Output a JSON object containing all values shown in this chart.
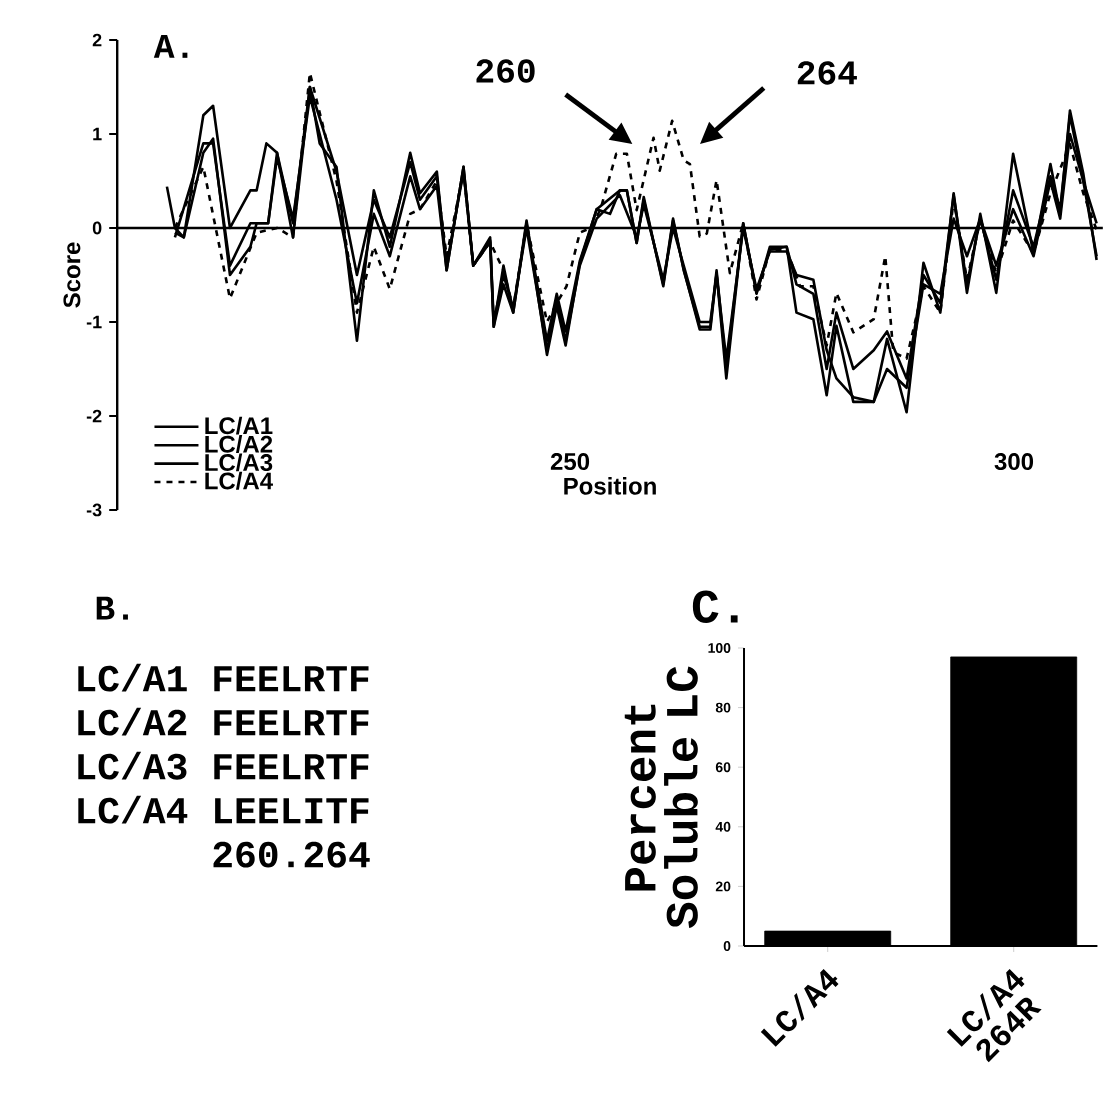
{
  "chart_data": [
    {
      "type": "line",
      "title": "A.",
      "xlabel": "Position",
      "ylabel": "Score",
      "xlim": [
        199,
        310
      ],
      "ylim": [
        -3,
        2
      ],
      "xticks": [
        250,
        300
      ],
      "yticks": [
        -3,
        -2,
        -1,
        0,
        1,
        2
      ],
      "legend": "bottom left",
      "ref_lines": [
        {
          "axis": "y",
          "value": 0
        }
      ],
      "annotations": [
        "260",
        "264"
      ],
      "series": [
        {
          "name": "LC/A1",
          "color": "#000000",
          "line_style": "solid",
          "x": [
            204.6,
            205.5,
            206.5,
            208.7,
            209.8,
            211.7,
            214,
            214.7,
            215.8,
            217,
            218.8,
            220.7,
            221.8,
            223.7,
            226,
            227.9,
            229.7,
            232,
            233.1,
            235,
            236.1,
            238,
            239.1,
            241,
            241.4,
            242.5,
            243.6,
            245.1,
            247.4,
            248.5,
            249.5,
            251.1,
            253,
            254.5,
            255.6,
            256.4,
            257.5,
            258.3,
            260.5,
            261.6,
            262.8,
            264.6,
            265.8,
            266.5,
            267.6,
            269.5,
            271,
            272.5,
            274.4,
            275.5,
            277.4,
            278.9,
            280,
            281.9,
            284.2,
            285.7,
            287.9,
            289.8,
            291.7,
            293.2,
            294.7,
            296.2,
            298,
            299.9,
            302.2,
            304.1,
            305.2,
            306.3,
            307.8,
            309.3
          ],
          "values": [
            0.44,
            0,
            -0.1,
            1.2,
            1.3,
            0,
            0.4,
            0.4,
            0.9,
            0.8,
            -0.1,
            1.5,
            0.9,
            0.65,
            -1.2,
            0.4,
            -0.2,
            0.8,
            0.37,
            0.6,
            -0.45,
            0.65,
            -0.4,
            -0.13,
            -1.05,
            -0.4,
            -0.9,
            0.08,
            -1.35,
            -0.83,
            -1.25,
            -0.37,
            0.2,
            0.15,
            0.4,
            0.4,
            -0.16,
            0.33,
            -0.62,
            0.08,
            -0.44,
            -1.08,
            -1.08,
            -0.48,
            -1.6,
            0.05,
            -0.69,
            -0.23,
            -0.2,
            -0.9,
            -0.97,
            -1.78,
            -1.04,
            -1.85,
            -1.85,
            -1.18,
            -1.96,
            -0.37,
            -0.9,
            0.37,
            -0.69,
            0.15,
            -0.69,
            0.79,
            -0.27,
            0.68,
            0.15,
            1.25,
            0.58,
            -0.34
          ]
        },
        {
          "name": "LC/A2",
          "color": "#000000",
          "line_style": "solid",
          "x": [
            205.5,
            206.5,
            208.7,
            209.8,
            211.7,
            214,
            214.7,
            216,
            217,
            218.8,
            220.7,
            221.8,
            223.7,
            226,
            227.9,
            229.7,
            232,
            233.1,
            235,
            236.1,
            238,
            239.1,
            241,
            241.4,
            242.5,
            243.6,
            245.1,
            247.4,
            248.5,
            249.5,
            251.1,
            253,
            255.6,
            256.4,
            257.5,
            258.3,
            260.5,
            261.6,
            262.8,
            264.6,
            265.8,
            266.5,
            267.6,
            269.5,
            271,
            272.5,
            274.4,
            275.5,
            277.4,
            278.9,
            280,
            281.9,
            284.2,
            285.7,
            287.9,
            289.8,
            291.7,
            293.2,
            294.7,
            296.2,
            298,
            299.9,
            302.2,
            304.1,
            305.2,
            306.3,
            307.8,
            309.3
          ],
          "values": [
            -0.05,
            -0.1,
            0.8,
            0.95,
            -0.5,
            -0.2,
            0.05,
            0.05,
            0.75,
            0.1,
            1.4,
            1.0,
            0.3,
            -0.8,
            0.15,
            -0.3,
            0.55,
            0.2,
            0.45,
            -0.45,
            0.65,
            -0.4,
            -0.15,
            -1.05,
            -0.6,
            -0.9,
            0.05,
            -1.2,
            -0.7,
            -1.1,
            -0.35,
            0.2,
            0.4,
            0.4,
            -0.16,
            0.3,
            -0.6,
            0.1,
            -0.45,
            -1.05,
            -1.05,
            -0.45,
            -1.5,
            0.05,
            -0.7,
            -0.2,
            -0.2,
            -0.6,
            -0.7,
            -1.5,
            -0.9,
            -1.5,
            -1.3,
            -1.1,
            -1.6,
            -0.5,
            -0.8,
            0.35,
            -0.6,
            0.1,
            -0.55,
            0.4,
            -0.2,
            0.55,
            0.2,
            1.2,
            0.5,
            0.05
          ]
        },
        {
          "name": "LC/A3",
          "color": "#000000",
          "line_style": "solid",
          "x": [
            205.5,
            208.7,
            209.8,
            211.7,
            214,
            216,
            217,
            218.8,
            220.7,
            223.7,
            226,
            227.9,
            229.7,
            232,
            233.1,
            235,
            236.1,
            238,
            239.1,
            241,
            241.4,
            242.5,
            243.6,
            245.1,
            247.4,
            248.5,
            249.5,
            251.1,
            253,
            255.6,
            257.5,
            258.3,
            260.5,
            261.6,
            262.8,
            264.6,
            265.8,
            266.5,
            267.6,
            269.5,
            271,
            272.5,
            274.4,
            275.5,
            277.4,
            278.9,
            280,
            281.9,
            284.2,
            285.7,
            287.9,
            289.8,
            291.7,
            293.2,
            294.7,
            296.2,
            298,
            299.9,
            302.2,
            304.1,
            305.2,
            306.3,
            307.8,
            309.3
          ],
          "values": [
            -0.1,
            0.9,
            0.9,
            -0.4,
            0.05,
            0.05,
            0.8,
            0.05,
            1.5,
            0.6,
            -0.5,
            0.3,
            -0.1,
            0.7,
            0.3,
            0.55,
            -0.4,
            0.6,
            -0.4,
            -0.1,
            -1.0,
            -0.5,
            -0.85,
            0.0,
            -1.3,
            -0.75,
            -1.2,
            -0.4,
            0.1,
            0.35,
            -0.1,
            0.25,
            -0.55,
            0.0,
            -0.4,
            -1.0,
            -1.0,
            -0.5,
            -1.4,
            0.0,
            -0.65,
            -0.25,
            -0.25,
            -0.5,
            -0.55,
            -1.3,
            -1.6,
            -1.8,
            -1.85,
            -1.5,
            -1.7,
            -0.6,
            -0.7,
            0.1,
            -0.3,
            0.1,
            -0.4,
            0.2,
            -0.3,
            0.5,
            0.1,
            1.0,
            0.5,
            -0.3
          ]
        },
        {
          "name": "LC/A4",
          "color": "#000000",
          "line_style": "dashed",
          "x": [
            205.5,
            208.7,
            211.7,
            214.7,
            217,
            218.8,
            220.7,
            223.7,
            226,
            227.9,
            229.7,
            232,
            233.1,
            235,
            236.1,
            238,
            239.1,
            241,
            242.5,
            243.6,
            245.1,
            247.4,
            248.5,
            249.6,
            251.1,
            252.3,
            253.4,
            255.2,
            256.4,
            257.5,
            259.4,
            260.1,
            261.5,
            262.8,
            263.5,
            264.6,
            265.4,
            266.5,
            268,
            269.5,
            271,
            272.5,
            274.4,
            275.9,
            277.4,
            278.9,
            280,
            281.9,
            284.2,
            285.5,
            286.4,
            287.9,
            289.8,
            291.7,
            293.2,
            294.7,
            296.2,
            298,
            299.9,
            302.2,
            304.1,
            306.3,
            307.8,
            309.3
          ],
          "values": [
            0.0,
            0.65,
            -0.75,
            -0.05,
            0.0,
            -0.1,
            1.65,
            0.5,
            -0.9,
            -0.2,
            -0.65,
            0.15,
            0.2,
            0.5,
            -0.3,
            0.6,
            -0.4,
            -0.15,
            -0.45,
            -0.85,
            0.05,
            -1.0,
            -0.8,
            -0.62,
            -0.05,
            0.0,
            0.19,
            0.79,
            0.79,
            0.19,
            0.96,
            0.61,
            1.14,
            0.72,
            0.68,
            -0.09,
            -0.06,
            0.51,
            -0.48,
            0.05,
            -0.76,
            -0.23,
            -0.23,
            -0.62,
            -0.62,
            -1.25,
            -0.69,
            -1.11,
            -0.97,
            -0.3,
            -1.32,
            -1.39,
            -0.62,
            -0.9,
            0.3,
            -0.55,
            0.08,
            -0.48,
            0.08,
            -0.27,
            0.37,
            0.89,
            0.37,
            -0.02
          ]
        }
      ]
    },
    {
      "type": "other",
      "title": "B.",
      "annotations": [
        "LC/A1 FEELRTF",
        "LC/A2 FEELRTF",
        "LC/A3 FEELRTF",
        "LC/A4 LEELITF",
        "260.264"
      ]
    },
    {
      "type": "bar",
      "title": "C.",
      "ylabel": "Percent Soluble LC",
      "categories": [
        "LC/A4",
        "LC/A4 264R"
      ],
      "values": [
        5,
        97
      ],
      "colors": [
        "#000000",
        "#000000"
      ],
      "ylim": [
        0,
        100
      ],
      "yticks": [
        0,
        20,
        40,
        60,
        80,
        100
      ]
    }
  ]
}
